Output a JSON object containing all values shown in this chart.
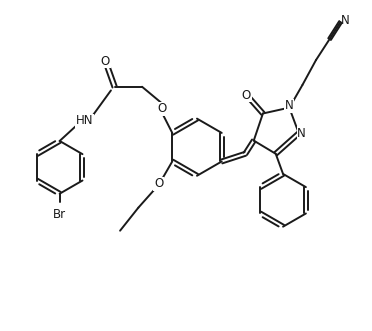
{
  "bg_color": "#ffffff",
  "line_color": "#1a1a1a",
  "line_width": 1.4,
  "font_size": 8.5,
  "fig_width": 3.72,
  "fig_height": 3.31,
  "dpi": 100,
  "xlim": [
    0,
    10
  ],
  "ylim": [
    0,
    9
  ]
}
